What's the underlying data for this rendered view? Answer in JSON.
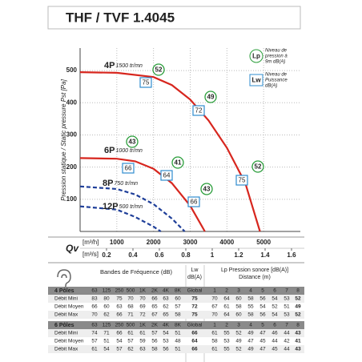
{
  "title": "THF / TVF 1.4045",
  "chart_data": {
    "type": "line",
    "y_label": "Pression statique / Static pressure Pst [Pa]",
    "x_label": "Qv",
    "x_unit": "[m³/h]",
    "x2_unit": "[m³/s]",
    "xlim": [
      0,
      6000
    ],
    "xticks": [
      1000,
      2000,
      3000,
      4000,
      5000
    ],
    "x2lim": [
      0,
      1.6667
    ],
    "x2ticks": [
      0.2,
      0.4,
      0.6,
      0.8,
      1,
      1.2,
      1.4,
      1.6
    ],
    "ylim": [
      0,
      570
    ],
    "yticks": [
      100,
      200,
      300,
      400,
      500
    ],
    "grid": true,
    "series": [
      {
        "name": "4P",
        "speed": "1500 tr/mn",
        "color": "#d7261e",
        "dashed": false,
        "x": [
          0,
          1000,
          2000,
          2500,
          3000,
          3500,
          4000,
          4500,
          4900
        ],
        "values": [
          495,
          493,
          480,
          455,
          410,
          345,
          260,
          150,
          0
        ],
        "lp": [
          52,
          49,
          52
        ],
        "lw": [
          75,
          72,
          75
        ]
      },
      {
        "name": "6P",
        "speed": "1000 tr/mn",
        "color": "#d7261e",
        "dashed": false,
        "x": [
          0,
          1000,
          1500,
          2000,
          2500,
          3000,
          3400
        ],
        "values": [
          228,
          226,
          218,
          195,
          150,
          80,
          0
        ],
        "lp": [
          43,
          41,
          43
        ],
        "lw": [
          66,
          64,
          66
        ]
      },
      {
        "name": "8P",
        "speed": "750 tr/mn",
        "color": "#1f3f99",
        "dashed": true,
        "x": [
          0,
          1000,
          1500,
          2000,
          2500,
          2850
        ],
        "values": [
          140,
          132,
          115,
          85,
          40,
          0
        ]
      },
      {
        "name": "12P",
        "speed": "500 tr/mn",
        "color": "#1f3f99",
        "dashed": true,
        "x": [
          0,
          1000,
          1500,
          2000,
          2200
        ],
        "values": [
          78,
          68,
          45,
          15,
          0
        ]
      }
    ],
    "legend": [
      {
        "symbol": "Lp",
        "lines": [
          "Niveau de",
          "pression à",
          "9m dB(A)"
        ]
      },
      {
        "symbol": "Lw",
        "lines": [
          "Niveau de",
          "Puissance",
          "dB(A)"
        ]
      }
    ]
  },
  "table": {
    "band_title": "Bandes de Fréquence (dB)",
    "lw_title": [
      "Lw",
      "dB(A)"
    ],
    "lp_title": [
      "Lp Pression sonore [dB(A)]",
      "Distance (m)"
    ],
    "sections": [
      {
        "name": "4 Pôles",
        "header": [
          "63",
          "125",
          "250",
          "500",
          "1K",
          "2K",
          "4K",
          "8K",
          "Global",
          "1",
          "2",
          "3",
          "4",
          "5",
          "6",
          "7",
          "8"
        ],
        "rows": [
          {
            "label": "Débit Mini",
            "cells": [
              83,
              80,
              75,
              70,
              70,
              66,
              63,
              60,
              75,
              70,
              64,
              60,
              58,
              56,
              54,
              53,
              52
            ]
          },
          {
            "label": "Débit Moyen",
            "cells": [
              66,
              60,
              63,
              68,
              69,
              65,
              62,
              57,
              72,
              67,
              61,
              58,
              55,
              54,
              52,
              51,
              49
            ]
          },
          {
            "label": "Débit Max",
            "cells": [
              70,
              62,
              66,
              71,
              72,
              67,
              65,
              58,
              75,
              70,
              64,
              60,
              58,
              56,
              54,
              53,
              52
            ]
          }
        ]
      },
      {
        "name": "6 Pôles",
        "header": [
          "63",
          "125",
          "250",
          "500",
          "1K",
          "2K",
          "4K",
          "8K",
          "Global",
          "1",
          "2",
          "3",
          "4",
          "5",
          "6",
          "7",
          "8"
        ],
        "rows": [
          {
            "label": "Débit Mini",
            "cells": [
              74,
              71,
              66,
              61,
              61,
              57,
              54,
              51,
              66,
              61,
              55,
              52,
              49,
              47,
              46,
              44,
              43
            ]
          },
          {
            "label": "Débit Moyen",
            "cells": [
              57,
              51,
              54,
              57,
              59,
              56,
              53,
              48,
              64,
              58,
              53,
              49,
              47,
              45,
              44,
              42,
              41
            ]
          },
          {
            "label": "Débit Max",
            "cells": [
              61,
              54,
              57,
              62,
              63,
              58,
              56,
              51,
              66,
              61,
              55,
              52,
              49,
              47,
              45,
              44,
              43
            ]
          }
        ]
      }
    ]
  }
}
